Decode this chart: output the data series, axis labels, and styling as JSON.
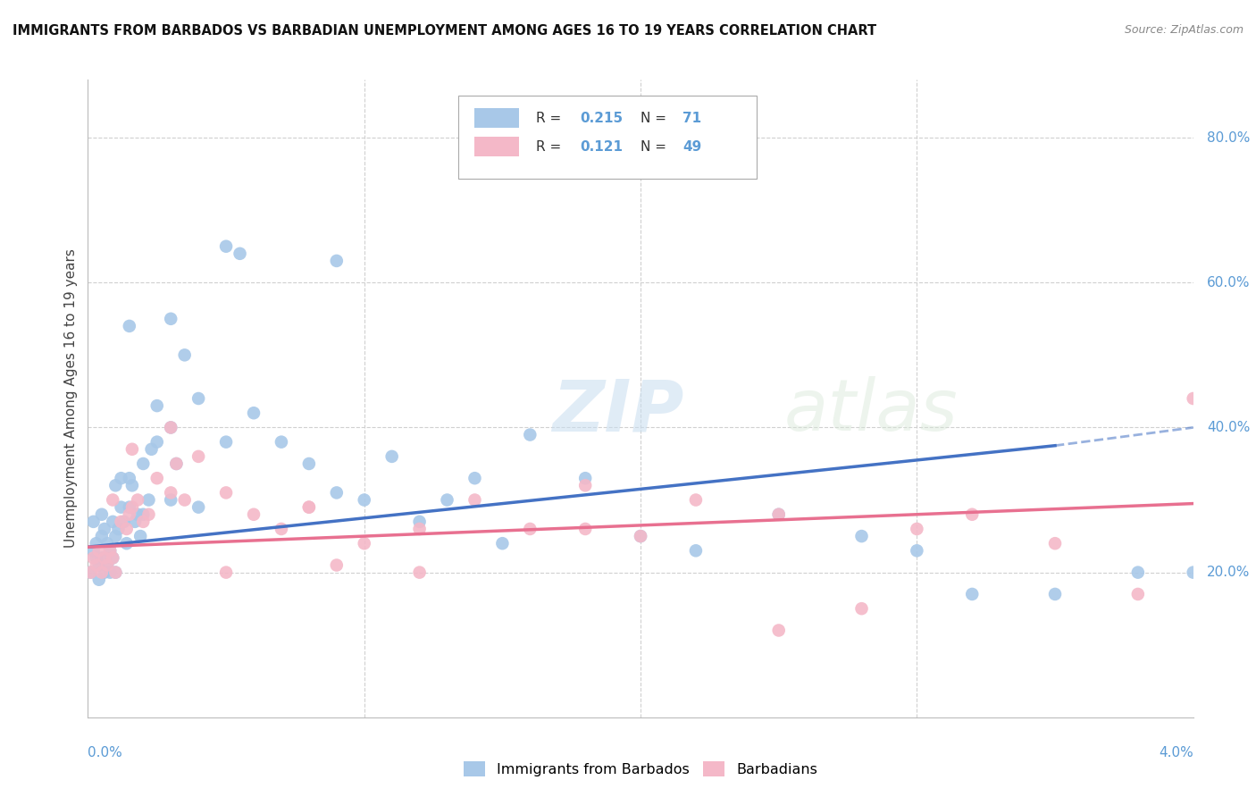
{
  "title": "IMMIGRANTS FROM BARBADOS VS BARBADIAN UNEMPLOYMENT AMONG AGES 16 TO 19 YEARS CORRELATION CHART",
  "source": "Source: ZipAtlas.com",
  "ylabel": "Unemployment Among Ages 16 to 19 years",
  "right_ytick_vals": [
    0.2,
    0.4,
    0.6,
    0.8
  ],
  "xmin": 0.0,
  "xmax": 0.04,
  "ymin": 0.0,
  "ymax": 0.88,
  "blue_color": "#a8c8e8",
  "pink_color": "#f4b8c8",
  "blue_line_color": "#4472c4",
  "pink_line_color": "#e87090",
  "grid_color": "#d0d0d0",
  "label_color": "#5b9bd5",
  "blue_trend": [
    0.0,
    0.035,
    0.235,
    0.375
  ],
  "blue_dash": [
    0.035,
    0.04,
    0.375,
    0.4
  ],
  "pink_trend": [
    0.0,
    0.04,
    0.235,
    0.295
  ],
  "blue_scatter_x": [
    0.0001,
    0.0002,
    0.0002,
    0.0003,
    0.0003,
    0.0004,
    0.0004,
    0.0005,
    0.0005,
    0.0005,
    0.0006,
    0.0006,
    0.0007,
    0.0007,
    0.0008,
    0.0008,
    0.0009,
    0.0009,
    0.001,
    0.001,
    0.001,
    0.0011,
    0.0012,
    0.0012,
    0.0013,
    0.0014,
    0.0015,
    0.0015,
    0.0016,
    0.0017,
    0.0018,
    0.0019,
    0.002,
    0.002,
    0.0022,
    0.0023,
    0.0025,
    0.0025,
    0.003,
    0.003,
    0.0032,
    0.0035,
    0.004,
    0.004,
    0.005,
    0.005,
    0.006,
    0.007,
    0.008,
    0.009,
    0.01,
    0.011,
    0.012,
    0.013,
    0.014,
    0.015,
    0.016,
    0.018,
    0.02,
    0.022,
    0.025,
    0.028,
    0.03,
    0.032,
    0.035,
    0.038,
    0.04,
    0.0015,
    0.003,
    0.0055,
    0.009
  ],
  "blue_scatter_y": [
    0.2,
    0.23,
    0.27,
    0.24,
    0.22,
    0.21,
    0.19,
    0.25,
    0.22,
    0.28,
    0.2,
    0.26,
    0.24,
    0.21,
    0.23,
    0.2,
    0.27,
    0.22,
    0.32,
    0.25,
    0.2,
    0.26,
    0.33,
    0.29,
    0.27,
    0.24,
    0.33,
    0.29,
    0.32,
    0.27,
    0.28,
    0.25,
    0.35,
    0.28,
    0.3,
    0.37,
    0.38,
    0.43,
    0.3,
    0.4,
    0.35,
    0.5,
    0.29,
    0.44,
    0.38,
    0.65,
    0.42,
    0.38,
    0.35,
    0.31,
    0.3,
    0.36,
    0.27,
    0.3,
    0.33,
    0.24,
    0.39,
    0.33,
    0.25,
    0.23,
    0.28,
    0.25,
    0.23,
    0.17,
    0.17,
    0.2,
    0.2,
    0.54,
    0.55,
    0.64,
    0.63
  ],
  "pink_scatter_x": [
    0.0001,
    0.0002,
    0.0003,
    0.0004,
    0.0005,
    0.0006,
    0.0007,
    0.0008,
    0.0009,
    0.001,
    0.0012,
    0.0014,
    0.0015,
    0.0016,
    0.0018,
    0.002,
    0.0022,
    0.0025,
    0.003,
    0.0032,
    0.0035,
    0.004,
    0.005,
    0.006,
    0.007,
    0.008,
    0.009,
    0.01,
    0.012,
    0.014,
    0.016,
    0.018,
    0.02,
    0.022,
    0.025,
    0.028,
    0.03,
    0.032,
    0.035,
    0.038,
    0.04,
    0.0009,
    0.0016,
    0.003,
    0.005,
    0.008,
    0.012,
    0.018,
    0.025
  ],
  "pink_scatter_y": [
    0.2,
    0.22,
    0.21,
    0.23,
    0.2,
    0.22,
    0.21,
    0.23,
    0.22,
    0.2,
    0.27,
    0.26,
    0.28,
    0.29,
    0.3,
    0.27,
    0.28,
    0.33,
    0.31,
    0.35,
    0.3,
    0.36,
    0.31,
    0.28,
    0.26,
    0.29,
    0.21,
    0.24,
    0.26,
    0.3,
    0.26,
    0.26,
    0.25,
    0.3,
    0.28,
    0.15,
    0.26,
    0.28,
    0.24,
    0.17,
    0.44,
    0.3,
    0.37,
    0.4,
    0.2,
    0.29,
    0.2,
    0.32,
    0.12
  ]
}
